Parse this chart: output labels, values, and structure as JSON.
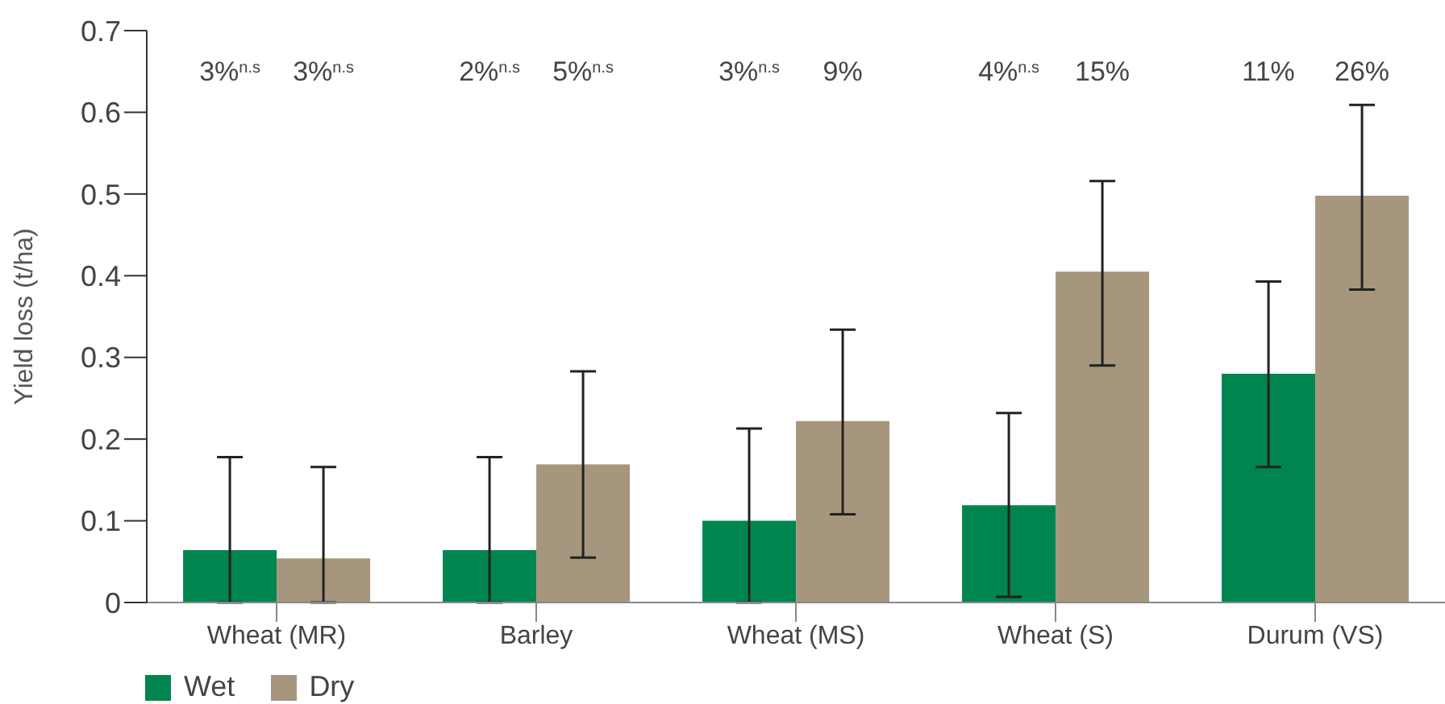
{
  "chart_data": {
    "type": "bar",
    "ylabel": "Yield loss (t/ha)",
    "categories": [
      "Wheat (MR)",
      "Barley",
      "Wheat (MS)",
      "Wheat (S)",
      "Durum (VS)"
    ],
    "series": [
      {
        "name": "Wet",
        "color": "#00854f",
        "values": [
          0.064,
          0.064,
          0.1,
          0.119,
          0.28
        ],
        "errors": [
          [
            0,
            0.178
          ],
          [
            0,
            0.178
          ],
          [
            0,
            0.213
          ],
          [
            0.007,
            0.232
          ],
          [
            0.166,
            0.393
          ]
        ]
      },
      {
        "name": "Dry",
        "color": "#a5967d",
        "values": [
          0.054,
          0.169,
          0.222,
          0.405,
          0.498
        ],
        "errors": [
          [
            0,
            0.166
          ],
          [
            0.055,
            0.283
          ],
          [
            0.108,
            0.334
          ],
          [
            0.29,
            0.516
          ],
          [
            0.383,
            0.609
          ]
        ]
      }
    ],
    "annotations": [
      "3%$^{n.s}$",
      "3%$^{n.s}$",
      "2%$^{n.s}$",
      "5%$^{n.s}$",
      "3%$^{n.s}$",
      "9%",
      "4%$^{n.s}$",
      "15%",
      "11%",
      "26%"
    ],
    "ylim": [
      0,
      0.7
    ],
    "yticks": [
      0,
      0.1,
      0.2,
      0.3,
      0.4,
      0.5,
      0.6,
      0.7
    ],
    "grid": false,
    "legend": "bottom left"
  }
}
